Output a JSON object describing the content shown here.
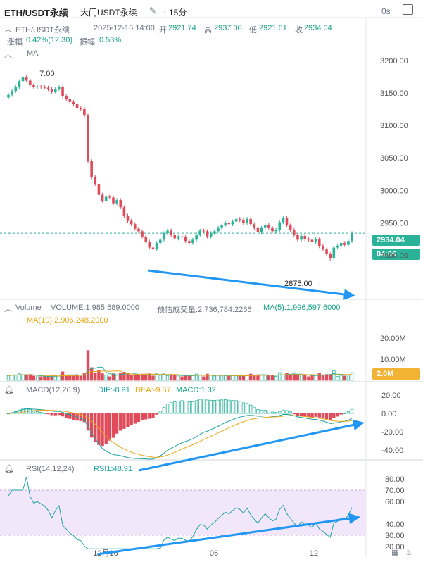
{
  "header": {
    "symbol": "ETH/USDT永续",
    "exchange": "大门USDT永续",
    "interval": "15分",
    "timer": "0s",
    "icons": [
      "edit-icon",
      "maximize-icon"
    ]
  },
  "ohlc": {
    "pair": "ETH/USDT永续",
    "datetime": "2025-12-16 14:00",
    "open_label": "开",
    "open": "2921.74",
    "high_label": "高",
    "high": "2937.00",
    "low_label": "低",
    "low": "2921.61",
    "close_label": "收",
    "close": "2934.04",
    "change_label": "涨幅",
    "change": "0.42%(12.30)",
    "amp_label": "振幅",
    "amp": "0.53%"
  },
  "price_panel": {
    "ma_label": "MA",
    "high_marker": "7.00",
    "low_marker": "2875.00",
    "last_price": "2934.04",
    "countdown": "04:06"
  },
  "volume_panel": {
    "label": "Volume",
    "volume": "VOLUME:1,985,689.0000",
    "est": "预估成交量:2,736,784.2266",
    "ma5": "MA(5):1,996,597.6000",
    "ma10": "MA(10):2,906,248.2000",
    "last_tag": "2.0M"
  },
  "macd_panel": {
    "label": "MACD(12,26,9)",
    "dif": "DIF:-8.91",
    "dea": "DEA:-9.57",
    "macd": "MACD:1.32"
  },
  "rsi_panel": {
    "label": "RSI(14,12,24)",
    "rsi1": "RSI1:48.91"
  },
  "footer": {
    "icons": [
      "calendar-icon",
      "fire-icon"
    ]
  },
  "colors": {
    "up": "#2bb39a",
    "down": "#e04b5a",
    "ma10": "#e6a817",
    "dif": "#1aa3a3",
    "arrow": "#2196f3",
    "rsi_band": "#f2e6fb"
  },
  "chart_data": [
    {
      "type": "candlestick",
      "title": "ETH/USDT永续 15分",
      "y_ticks": [
        3200,
        3150,
        3100,
        3050,
        3000,
        2950,
        2900
      ],
      "ylim": [
        2868,
        3215
      ],
      "x_ticks": [
        "12月16",
        "06",
        "12"
      ],
      "close": [
        3147,
        3153,
        3159,
        3168,
        3174,
        3169,
        3162,
        3159,
        3160,
        3159,
        3158,
        3156,
        3152,
        3156,
        3159,
        3145,
        3141,
        3136,
        3133,
        3127,
        3125,
        3115,
        3045,
        3020,
        3010,
        2993,
        2984,
        2990,
        2989,
        2980,
        2985,
        2974,
        2961,
        2953,
        2948,
        2941,
        2937,
        2929,
        2921,
        2912,
        2909,
        2919,
        2924,
        2934,
        2938,
        2931,
        2926,
        2929,
        2928,
        2922,
        2919,
        2924,
        2932,
        2938,
        2937,
        2929,
        2934,
        2937,
        2942,
        2946,
        2950,
        2948,
        2952,
        2956,
        2954,
        2950,
        2956,
        2948,
        2942,
        2936,
        2942,
        2947,
        2942,
        2937,
        2939,
        2951,
        2957,
        2946,
        2939,
        2931,
        2924,
        2930,
        2925,
        2924,
        2920,
        2925,
        2914,
        2909,
        2902,
        2895,
        2912,
        2914,
        2919,
        2916,
        2922,
        2934
      ],
      "volume_ylim": [
        0,
        30000000
      ],
      "volume_ticks": [
        "20.00M",
        "10.00M"
      ],
      "macd_ticks": [
        20,
        0,
        -20,
        -40
      ],
      "rsi_ticks": [
        80,
        70,
        60,
        40,
        30,
        20
      ],
      "rsi_last": 48.91
    }
  ]
}
